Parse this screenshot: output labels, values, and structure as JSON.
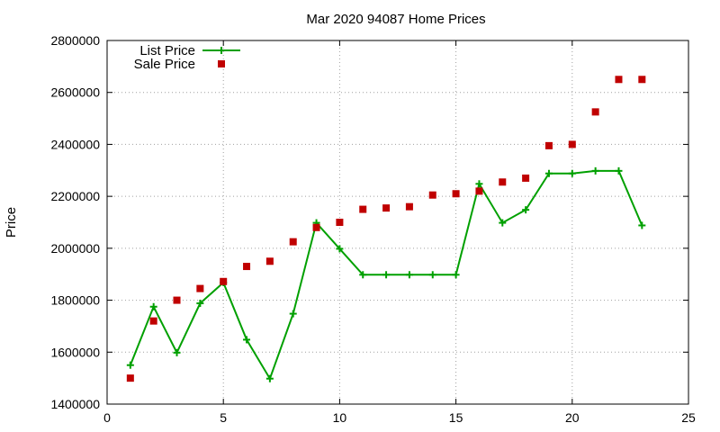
{
  "chart_data": {
    "type": "line",
    "title": "Mar 2020 94087 Home Prices",
    "xlabel": "",
    "ylabel": "Price",
    "xlim": [
      0,
      25
    ],
    "ylim": [
      1400000,
      2800000
    ],
    "xticks": [
      0,
      5,
      10,
      15,
      20,
      25
    ],
    "yticks": [
      1400000,
      1600000,
      1800000,
      2000000,
      2200000,
      2400000,
      2600000,
      2800000
    ],
    "grid": true,
    "legend_position": "top-left",
    "series": [
      {
        "name": "List Price",
        "style": "line-plus",
        "color": "#00a000",
        "x": [
          1,
          2,
          3,
          4,
          5,
          6,
          7,
          8,
          9,
          10,
          11,
          12,
          13,
          14,
          15,
          16,
          17,
          18,
          19,
          20,
          21,
          22,
          23
        ],
        "y": [
          1550000,
          1775000,
          1598000,
          1788000,
          1868000,
          1648000,
          1498000,
          1748000,
          2098000,
          1998000,
          1898000,
          1898000,
          1898000,
          1898000,
          1898000,
          2248000,
          2098000,
          2148000,
          2288000,
          2288000,
          2298000,
          2298000,
          2088000
        ]
      },
      {
        "name": "Sale Price",
        "style": "square-points",
        "color": "#c00000",
        "x": [
          1,
          2,
          3,
          4,
          5,
          6,
          7,
          8,
          9,
          10,
          11,
          12,
          13,
          14,
          15,
          16,
          17,
          18,
          19,
          20,
          21,
          22,
          23
        ],
        "y": [
          1500000,
          1720000,
          1800000,
          1845000,
          1872000,
          1930000,
          1950000,
          2025000,
          2080000,
          2100000,
          2150000,
          2155000,
          2160000,
          2205000,
          2210000,
          2220000,
          2255000,
          2270000,
          2395000,
          2400000,
          2525000,
          2650000,
          2650000
        ]
      }
    ]
  }
}
